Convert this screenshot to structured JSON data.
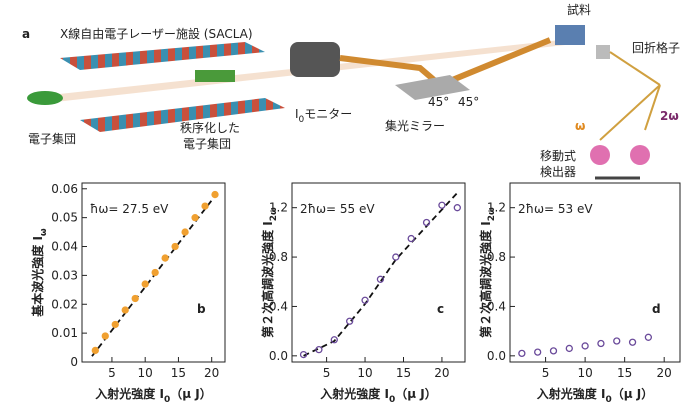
{
  "diagram": {
    "panel": "a",
    "facility": "X線自由電子レーザー施設 (SACLA)",
    "bunch": "電子集団",
    "ordered_1": "秩序化した",
    "ordered_2": "電子集団",
    "monitor_i": "I",
    "monitor_sub": "0",
    "monitor_rest": "モニター",
    "mirror": "集光ミラー",
    "sample": "試料",
    "angle_1": "45°",
    "angle_2": "45°",
    "grating": "回折格子",
    "omega": "ω",
    "two_omega": "2ω",
    "detector_1": "移動式",
    "detector_2": "検出器"
  },
  "chart_data": [
    {
      "type": "scatter",
      "panel": "b",
      "annotation": "ħω= 27.5 eV",
      "y_label": "基本波光強度 I",
      "y_label_sub": "ω",
      "x_label": "入射光強度 I",
      "x_label_sub": "0",
      "x_label_unit": "（μ J）",
      "color": "#f0a030",
      "x": [
        2.5,
        4,
        5.5,
        7,
        8.5,
        10,
        11.5,
        13,
        14.5,
        16,
        17.5,
        19,
        20.5
      ],
      "values": [
        0.004,
        0.009,
        0.013,
        0.018,
        0.022,
        0.027,
        0.031,
        0.036,
        0.04,
        0.045,
        0.05,
        0.054,
        0.058
      ],
      "fit": {
        "x": [
          2,
          21
        ],
        "y": [
          0.002,
          0.059
        ]
      },
      "xlim": [
        0.5,
        22
      ],
      "xticks": [
        5,
        10,
        15,
        20
      ],
      "ylim": [
        0,
        0.062
      ],
      "yticks": [
        0,
        0.01,
        0.02,
        0.03,
        0.04,
        0.05,
        0.06
      ]
    },
    {
      "type": "scatter",
      "panel": "c",
      "annotation": "2ħω= 55 eV",
      "y_label": "第２次高調波光強度 I",
      "y_label_sub": "2ω",
      "x_label": "入射光強度 I",
      "x_label_sub": "0",
      "x_label_unit": "（μ J）",
      "color": "#6a4a9a",
      "x": [
        2,
        4,
        6,
        8,
        10,
        12,
        14,
        16,
        18,
        20,
        22
      ],
      "values": [
        0.01,
        0.05,
        0.13,
        0.28,
        0.45,
        0.62,
        0.8,
        0.95,
        1.08,
        1.22,
        1.2
      ],
      "fit": {
        "x": [
          2,
          6,
          10,
          14,
          18,
          22
        ],
        "y": [
          0,
          0.12,
          0.42,
          0.78,
          1.05,
          1.32
        ]
      },
      "xlim": [
        0.5,
        23
      ],
      "xticks": [
        5,
        10,
        15,
        20
      ],
      "ylim": [
        -0.05,
        1.4
      ],
      "yticks": [
        {
          "value": 0,
          "label": "0.0"
        },
        0.4,
        0.8,
        1.2
      ]
    },
    {
      "type": "scatter",
      "panel": "d",
      "annotation": "2ħω= 53 eV",
      "y_label": "第２次高調波光強度 I",
      "y_label_sub": "2ω",
      "x_label": "入射光強度 I",
      "x_label_sub": "0",
      "x_label_unit": "（μ J）",
      "color": "#6a4a9a",
      "x": [
        2,
        4,
        6,
        8,
        10,
        12,
        14,
        16,
        18
      ],
      "values": [
        0.02,
        0.03,
        0.04,
        0.06,
        0.08,
        0.1,
        0.12,
        0.11,
        0.15
      ],
      "xlim": [
        0.5,
        22
      ],
      "xticks": [
        5,
        10,
        15,
        20
      ],
      "ylim": [
        -0.05,
        1.4
      ],
      "yticks": [
        {
          "value": 0,
          "label": "0.0"
        },
        0.4,
        0.8,
        1.2
      ]
    }
  ]
}
